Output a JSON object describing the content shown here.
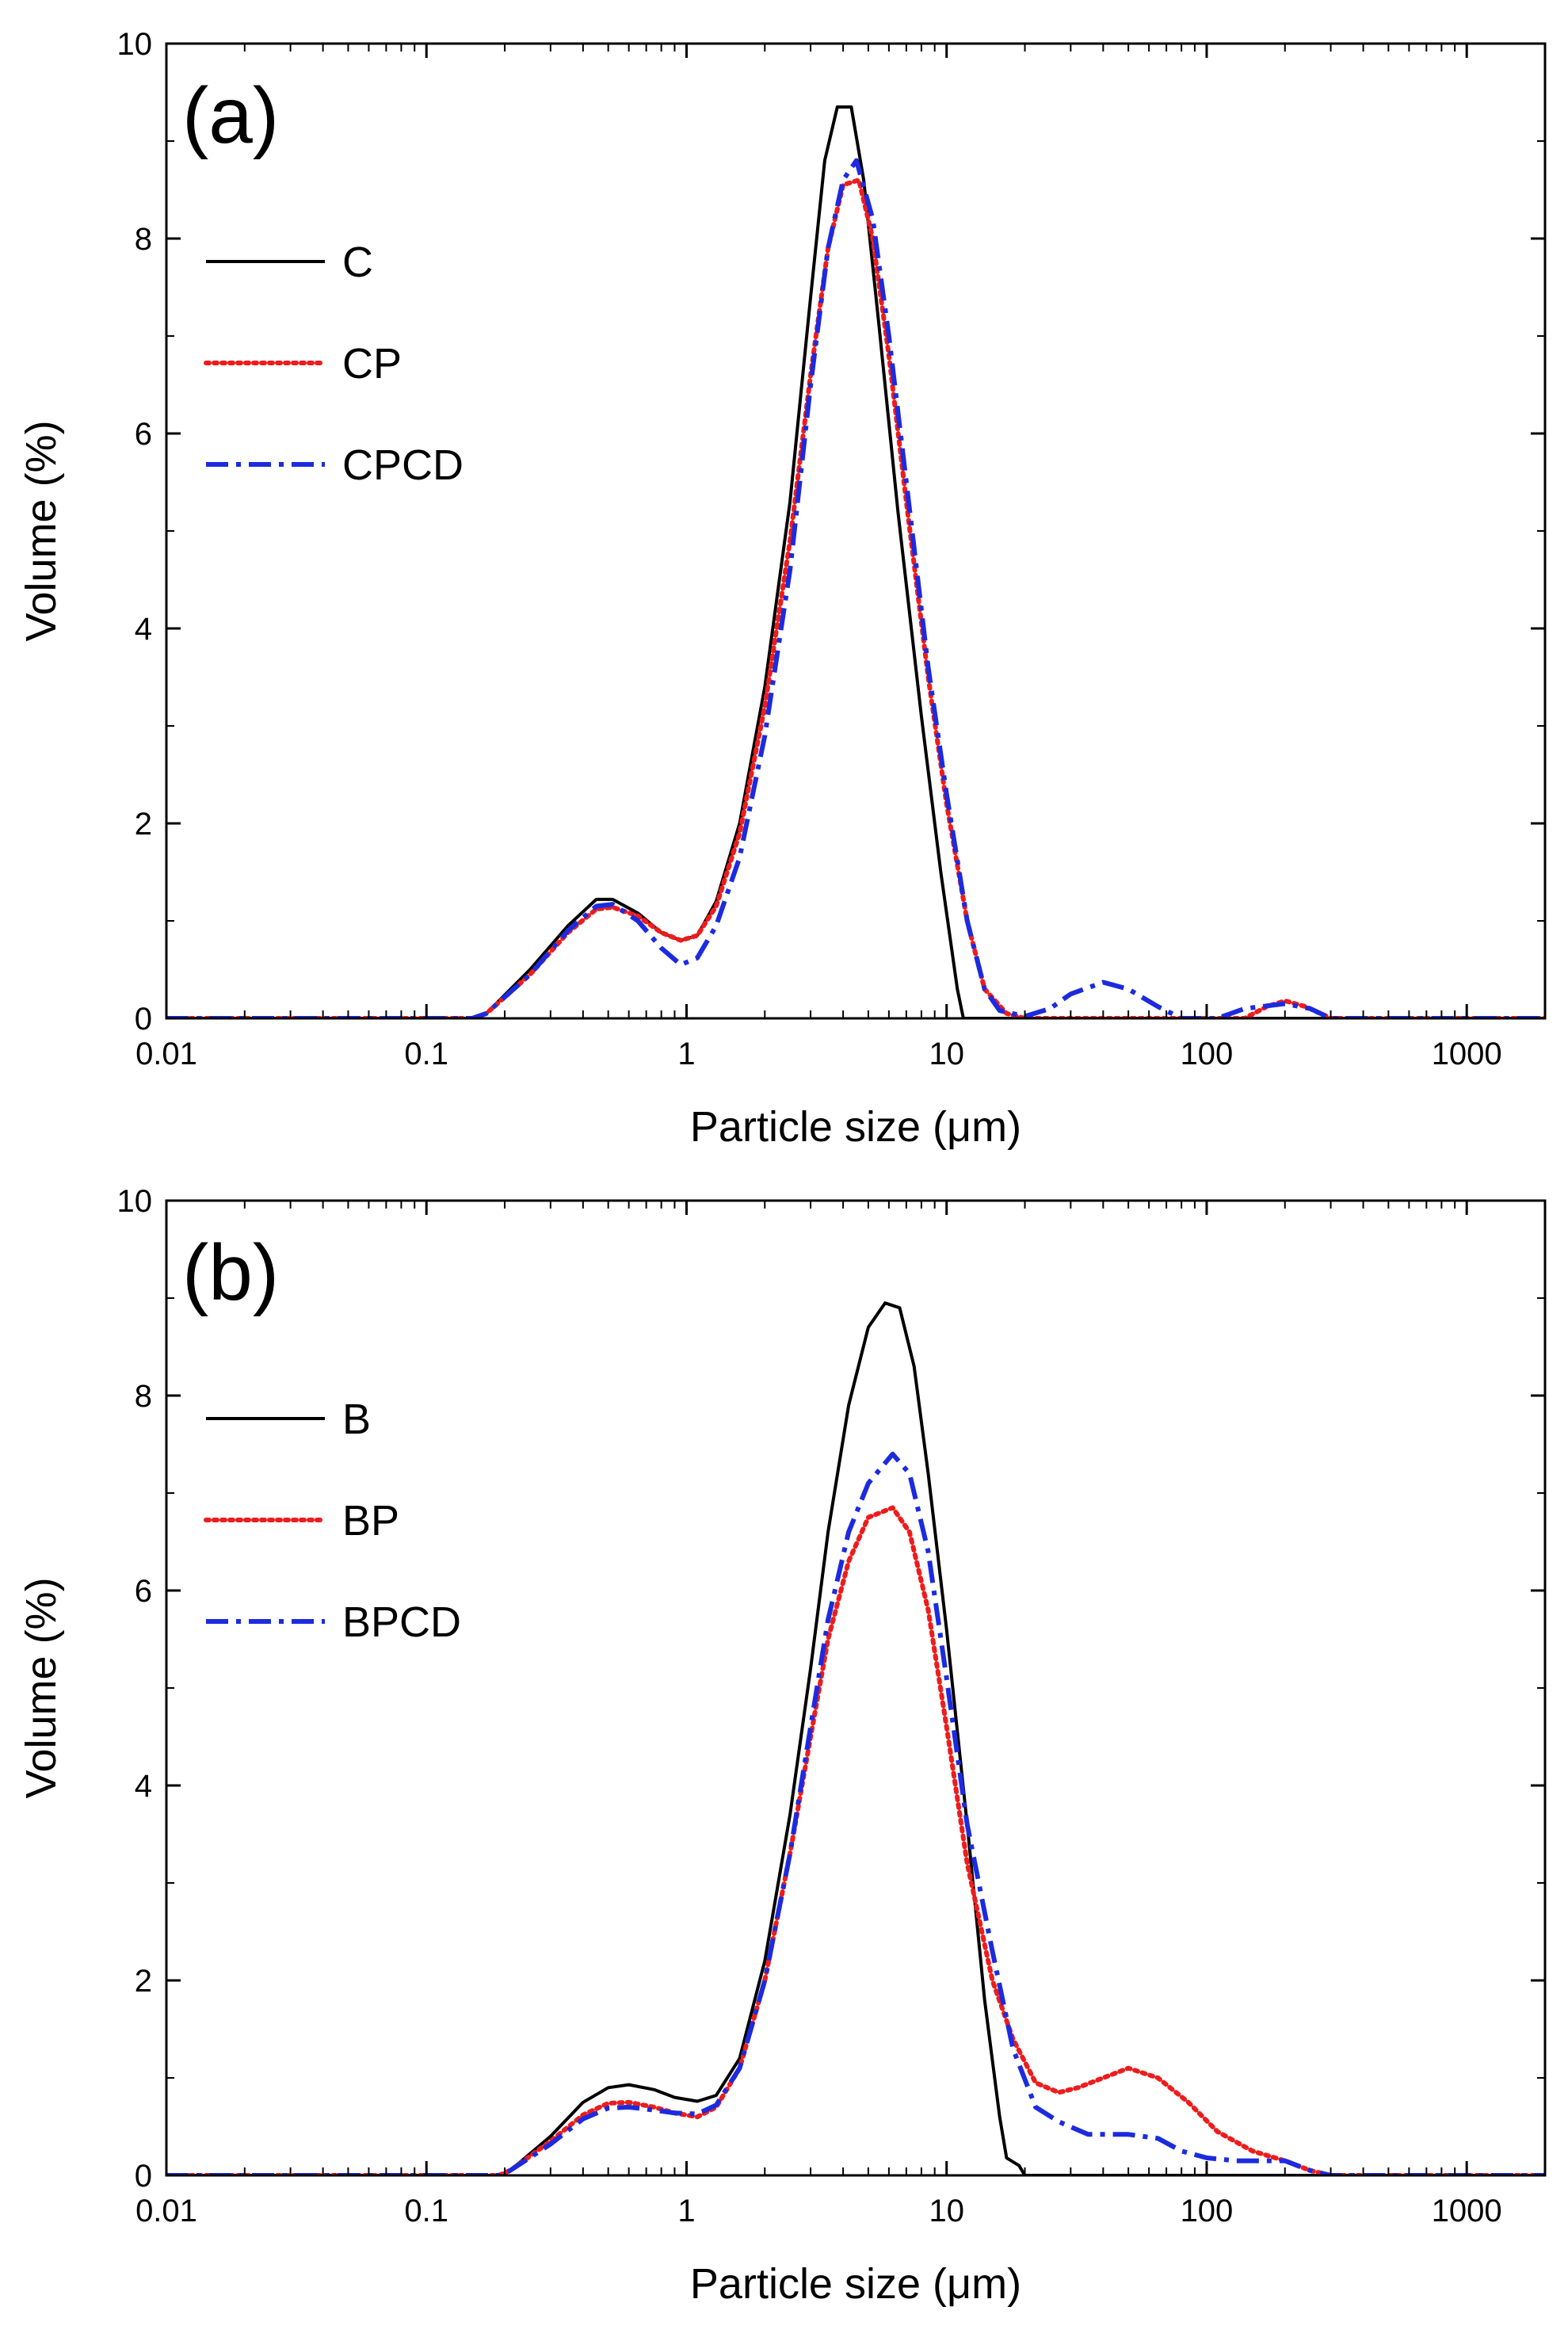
{
  "chart_data": [
    {
      "type": "line",
      "panel_label": "(a)",
      "xlabel": "Particle size (μm)",
      "ylabel": "Volume (%)",
      "xscale": "log",
      "xlim": [
        0.01,
        2000
      ],
      "ylim": [
        0,
        10
      ],
      "x_ticks": [
        0.01,
        0.1,
        1,
        10,
        100,
        1000
      ],
      "x_tick_labels": [
        "0.01",
        "0.1",
        "1",
        "10",
        "100",
        "1000"
      ],
      "y_ticks": [
        0,
        2,
        4,
        6,
        8,
        10
      ],
      "y_tick_labels": [
        "0",
        "2",
        "4",
        "6",
        "8",
        "10"
      ],
      "legend_position": "upper-left",
      "grid": false,
      "series": [
        {
          "name": "C",
          "color": "#000000",
          "style": "solid",
          "points": [
            [
              0.01,
              0
            ],
            [
              0.15,
              0
            ],
            [
              0.17,
              0.05
            ],
            [
              0.25,
              0.5
            ],
            [
              0.35,
              0.95
            ],
            [
              0.45,
              1.22
            ],
            [
              0.52,
              1.22
            ],
            [
              0.65,
              1.08
            ],
            [
              0.8,
              0.88
            ],
            [
              0.95,
              0.8
            ],
            [
              1.1,
              0.85
            ],
            [
              1.3,
              1.2
            ],
            [
              1.6,
              2.0
            ],
            [
              2.0,
              3.4
            ],
            [
              2.5,
              5.3
            ],
            [
              3.0,
              7.4
            ],
            [
              3.4,
              8.8
            ],
            [
              3.8,
              9.35
            ],
            [
              4.3,
              9.35
            ],
            [
              4.8,
              8.6
            ],
            [
              5.5,
              7.1
            ],
            [
              6.5,
              5.2
            ],
            [
              8.0,
              3.1
            ],
            [
              9.5,
              1.5
            ],
            [
              11.0,
              0.3
            ],
            [
              11.6,
              0
            ],
            [
              2000,
              0
            ]
          ]
        },
        {
          "name": "CP",
          "color": "#ee1c1c",
          "style": "dotted",
          "points": [
            [
              0.01,
              0
            ],
            [
              0.15,
              0
            ],
            [
              0.17,
              0.05
            ],
            [
              0.25,
              0.45
            ],
            [
              0.35,
              0.88
            ],
            [
              0.45,
              1.12
            ],
            [
              0.52,
              1.14
            ],
            [
              0.65,
              1.05
            ],
            [
              0.8,
              0.88
            ],
            [
              0.95,
              0.8
            ],
            [
              1.1,
              0.85
            ],
            [
              1.3,
              1.15
            ],
            [
              1.6,
              1.9
            ],
            [
              2.0,
              3.2
            ],
            [
              2.5,
              4.9
            ],
            [
              3.0,
              6.6
            ],
            [
              3.5,
              7.9
            ],
            [
              4.0,
              8.55
            ],
            [
              4.6,
              8.6
            ],
            [
              5.2,
              8.0
            ],
            [
              6.0,
              6.8
            ],
            [
              7.0,
              5.3
            ],
            [
              8.5,
              3.5
            ],
            [
              10.0,
              2.2
            ],
            [
              12.0,
              1.0
            ],
            [
              14.0,
              0.3
            ],
            [
              17.0,
              0.05
            ],
            [
              20.0,
              0
            ],
            [
              140,
              0
            ],
            [
              170,
              0.12
            ],
            [
              200,
              0.18
            ],
            [
              240,
              0.12
            ],
            [
              300,
              0
            ],
            [
              2000,
              0
            ]
          ]
        },
        {
          "name": "CPCD",
          "color": "#1c2be0",
          "style": "dash-dot",
          "points": [
            [
              0.01,
              0
            ],
            [
              0.15,
              0
            ],
            [
              0.17,
              0.05
            ],
            [
              0.25,
              0.45
            ],
            [
              0.35,
              0.9
            ],
            [
              0.45,
              1.15
            ],
            [
              0.52,
              1.17
            ],
            [
              0.65,
              1.0
            ],
            [
              0.8,
              0.72
            ],
            [
              0.95,
              0.55
            ],
            [
              1.1,
              0.62
            ],
            [
              1.3,
              0.95
            ],
            [
              1.6,
              1.65
            ],
            [
              2.0,
              2.9
            ],
            [
              2.5,
              4.6
            ],
            [
              3.0,
              6.5
            ],
            [
              3.5,
              7.9
            ],
            [
              4.0,
              8.6
            ],
            [
              4.5,
              8.8
            ],
            [
              5.2,
              8.2
            ],
            [
              6.0,
              7.0
            ],
            [
              7.0,
              5.5
            ],
            [
              8.5,
              3.6
            ],
            [
              10.0,
              2.3
            ],
            [
              12.0,
              1.0
            ],
            [
              14.0,
              0.3
            ],
            [
              16.0,
              0.08
            ],
            [
              20.0,
              0.02
            ],
            [
              25.0,
              0.1
            ],
            [
              30.0,
              0.25
            ],
            [
              40.0,
              0.37
            ],
            [
              50.0,
              0.3
            ],
            [
              65.0,
              0.12
            ],
            [
              80.0,
              0
            ],
            [
              110,
              0
            ],
            [
              140,
              0.1
            ],
            [
              200,
              0.15
            ],
            [
              250,
              0.1
            ],
            [
              300,
              0
            ],
            [
              2000,
              0
            ]
          ]
        }
      ]
    },
    {
      "type": "line",
      "panel_label": "(b)",
      "xlabel": "Particle size (μm)",
      "ylabel": "Volume (%)",
      "xscale": "log",
      "xlim": [
        0.01,
        2000
      ],
      "ylim": [
        0,
        10
      ],
      "x_ticks": [
        0.01,
        0.1,
        1,
        10,
        100,
        1000
      ],
      "x_tick_labels": [
        "0.01",
        "0.1",
        "1",
        "10",
        "100",
        "1000"
      ],
      "y_ticks": [
        0,
        2,
        4,
        6,
        8,
        10
      ],
      "y_tick_labels": [
        "0",
        "2",
        "4",
        "6",
        "8",
        "10"
      ],
      "legend_position": "upper-left",
      "grid": false,
      "series": [
        {
          "name": "B",
          "color": "#000000",
          "style": "solid",
          "points": [
            [
              0.01,
              0
            ],
            [
              0.19,
              0
            ],
            [
              0.21,
              0.05
            ],
            [
              0.3,
              0.4
            ],
            [
              0.4,
              0.75
            ],
            [
              0.5,
              0.9
            ],
            [
              0.6,
              0.93
            ],
            [
              0.75,
              0.88
            ],
            [
              0.9,
              0.8
            ],
            [
              1.1,
              0.76
            ],
            [
              1.3,
              0.82
            ],
            [
              1.6,
              1.2
            ],
            [
              2.0,
              2.2
            ],
            [
              2.5,
              3.7
            ],
            [
              3.0,
              5.2
            ],
            [
              3.5,
              6.6
            ],
            [
              4.2,
              7.9
            ],
            [
              5.0,
              8.7
            ],
            [
              5.8,
              8.95
            ],
            [
              6.6,
              8.9
            ],
            [
              7.5,
              8.3
            ],
            [
              8.5,
              7.2
            ],
            [
              10.0,
              5.6
            ],
            [
              12.0,
              3.6
            ],
            [
              14.0,
              1.8
            ],
            [
              16.0,
              0.6
            ],
            [
              17.0,
              0.18
            ],
            [
              19.0,
              0.1
            ],
            [
              20.0,
              0
            ],
            [
              2000,
              0
            ]
          ]
        },
        {
          "name": "BP",
          "color": "#ee1c1c",
          "style": "dotted",
          "points": [
            [
              0.01,
              0
            ],
            [
              0.19,
              0
            ],
            [
              0.21,
              0.05
            ],
            [
              0.3,
              0.35
            ],
            [
              0.4,
              0.62
            ],
            [
              0.5,
              0.74
            ],
            [
              0.6,
              0.75
            ],
            [
              0.75,
              0.7
            ],
            [
              0.9,
              0.64
            ],
            [
              1.1,
              0.6
            ],
            [
              1.3,
              0.7
            ],
            [
              1.6,
              1.1
            ],
            [
              2.0,
              2.0
            ],
            [
              2.5,
              3.3
            ],
            [
              3.0,
              4.5
            ],
            [
              3.5,
              5.5
            ],
            [
              4.2,
              6.3
            ],
            [
              5.0,
              6.75
            ],
            [
              6.2,
              6.85
            ],
            [
              7.2,
              6.6
            ],
            [
              8.5,
              5.8
            ],
            [
              10.0,
              4.6
            ],
            [
              12.0,
              3.2
            ],
            [
              15.0,
              2.0
            ],
            [
              18.0,
              1.4
            ],
            [
              22.0,
              0.95
            ],
            [
              27.0,
              0.85
            ],
            [
              32.0,
              0.9
            ],
            [
              40.0,
              1.0
            ],
            [
              50.0,
              1.1
            ],
            [
              65.0,
              1.0
            ],
            [
              85.0,
              0.75
            ],
            [
              110.0,
              0.45
            ],
            [
              150.0,
              0.25
            ],
            [
              200.0,
              0.15
            ],
            [
              250.0,
              0.05
            ],
            [
              300.0,
              0
            ],
            [
              2000,
              0
            ]
          ]
        },
        {
          "name": "BPCD",
          "color": "#1c2be0",
          "style": "dash-dot",
          "points": [
            [
              0.01,
              0
            ],
            [
              0.19,
              0
            ],
            [
              0.21,
              0.05
            ],
            [
              0.3,
              0.32
            ],
            [
              0.4,
              0.58
            ],
            [
              0.5,
              0.69
            ],
            [
              0.6,
              0.7
            ],
            [
              0.75,
              0.67
            ],
            [
              0.9,
              0.64
            ],
            [
              1.1,
              0.63
            ],
            [
              1.3,
              0.72
            ],
            [
              1.6,
              1.1
            ],
            [
              2.0,
              2.0
            ],
            [
              2.5,
              3.3
            ],
            [
              3.0,
              4.6
            ],
            [
              3.5,
              5.7
            ],
            [
              4.2,
              6.6
            ],
            [
              5.0,
              7.1
            ],
            [
              6.2,
              7.4
            ],
            [
              7.2,
              7.2
            ],
            [
              8.5,
              6.4
            ],
            [
              10.0,
              5.1
            ],
            [
              12.0,
              3.6
            ],
            [
              15.0,
              2.3
            ],
            [
              18.0,
              1.3
            ],
            [
              22.0,
              0.7
            ],
            [
              27.0,
              0.55
            ],
            [
              35.0,
              0.42
            ],
            [
              50.0,
              0.42
            ],
            [
              65.0,
              0.38
            ],
            [
              80.0,
              0.25
            ],
            [
              100.0,
              0.18
            ],
            [
              130.0,
              0.15
            ],
            [
              200.0,
              0.15
            ],
            [
              250.0,
              0.05
            ],
            [
              300.0,
              0
            ],
            [
              2000,
              0
            ]
          ]
        }
      ]
    }
  ]
}
